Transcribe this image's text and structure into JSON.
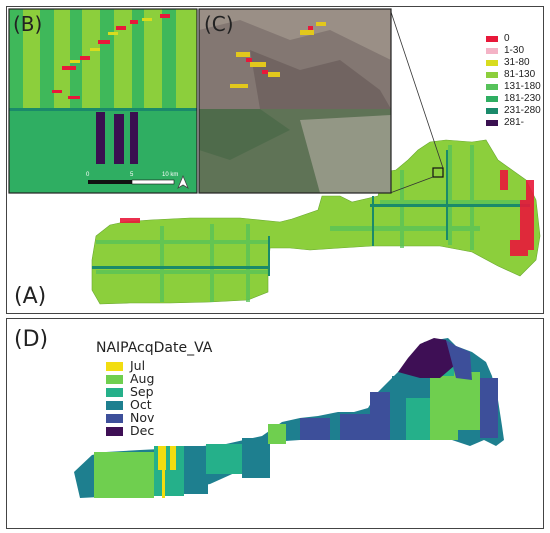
{
  "panels": {
    "a_label": "(A)",
    "b_label": "(B)",
    "c_label": "(C)",
    "d_label": "(D)"
  },
  "legend_top": {
    "items": [
      {
        "label": "0",
        "color": "#e8183a"
      },
      {
        "label": "1-30",
        "color": "#f4b3c6"
      },
      {
        "label": "31-80",
        "color": "#d8dc1e"
      },
      {
        "label": "81-130",
        "color": "#8ccf3c"
      },
      {
        "label": "131-180",
        "color": "#56c25a"
      },
      {
        "label": "181-230",
        "color": "#2fae62"
      },
      {
        "label": "231-280",
        "color": "#1a8a6a"
      },
      {
        "label": "281-",
        "color": "#3a1050"
      }
    ]
  },
  "legend_bottom": {
    "title": "NAIPAcqDate_VA",
    "items": [
      {
        "label": "Jul",
        "color": "#f2dd10"
      },
      {
        "label": "Aug",
        "color": "#6fcf4f"
      },
      {
        "label": "Sep",
        "color": "#25b08a"
      },
      {
        "label": "Oct",
        "color": "#1e7f8f"
      },
      {
        "label": "Nov",
        "color": "#3d4f9a"
      },
      {
        "label": "Dec",
        "color": "#3e0f55"
      }
    ]
  },
  "scalebar": {
    "zero": "0",
    "mid": "5",
    "end": "10 km"
  }
}
